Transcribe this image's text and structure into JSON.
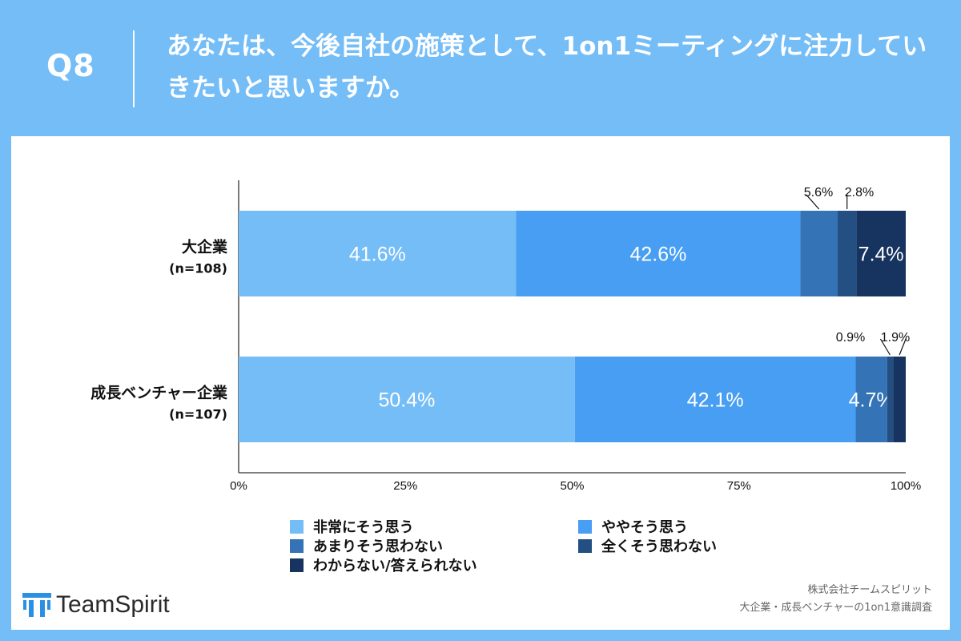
{
  "header": {
    "q_label": "Q8",
    "question": "あなたは、今後自社の施策として、1on1ミーティングに注力していきたいと思いますか。"
  },
  "chart_data": {
    "type": "bar",
    "orientation": "horizontal",
    "stacked": true,
    "categories": [
      {
        "name": "大企業",
        "n": "(n=108)"
      },
      {
        "name": "成長ベンチャー企業",
        "n": "(n=107)"
      }
    ],
    "series": [
      {
        "name": "非常にそう思う",
        "color": "#74BDF7",
        "values": [
          41.6,
          50.4
        ]
      },
      {
        "name": "ややそう思う",
        "color": "#479EF2",
        "values": [
          42.6,
          42.1
        ]
      },
      {
        "name": "あまりそう思わない",
        "color": "#3473B5",
        "values": [
          5.6,
          4.7
        ]
      },
      {
        "name": "全くそう思わない",
        "color": "#234F82",
        "values": [
          2.8,
          0.9
        ]
      },
      {
        "name": "わからない/答えられない",
        "color": "#16345F",
        "values": [
          7.4,
          1.9
        ]
      }
    ],
    "data_labels": [
      [
        "41.6%",
        "42.6%",
        "5.6%",
        "2.8%",
        "7.4%"
      ],
      [
        "50.4%",
        "42.1%",
        "4.7%",
        "0.9%",
        "1.9%"
      ]
    ],
    "x_ticks": [
      "0%",
      "25%",
      "50%",
      "75%",
      "100%"
    ],
    "xlim": [
      0,
      100
    ],
    "unit": "%",
    "grid": false,
    "legend_position": "bottom"
  },
  "legend": [
    "非常にそう思う",
    "ややそう思う",
    "あまりそう思わない",
    "全くそう思わない",
    "わからない/答えられない"
  ],
  "footer": {
    "logo_text": "TeamSpirit",
    "credit_line1": "株式会社チームスピリット",
    "credit_line2": "大企業・成長ベンチャーの1on1意識調査"
  }
}
